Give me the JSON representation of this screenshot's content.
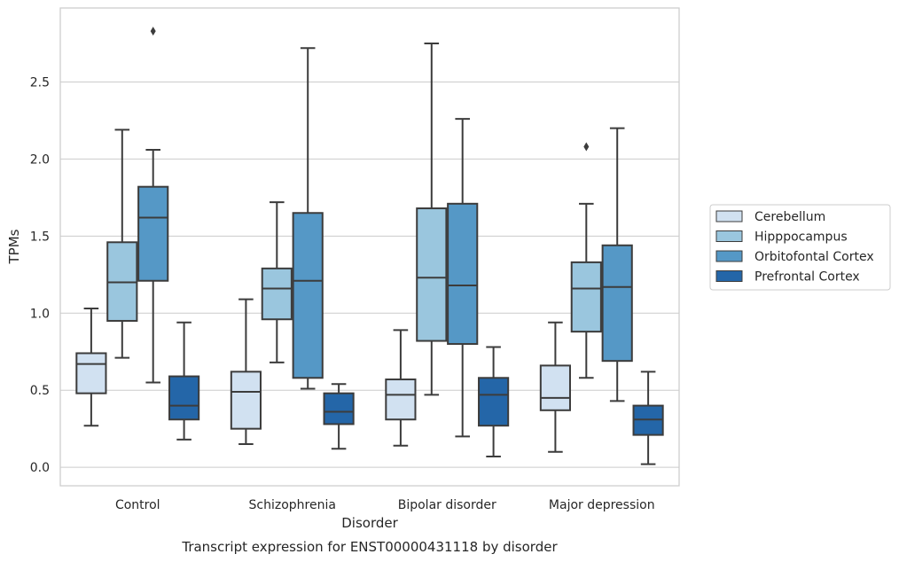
{
  "chart_data": {
    "type": "boxplot",
    "caption": "Transcript expression for ENST00000431118 by disorder",
    "xlabel": "Disorder",
    "ylabel": "TPMs",
    "ylim": [
      -0.12,
      2.98
    ],
    "yticks": [
      0.0,
      0.5,
      1.0,
      1.5,
      2.0,
      2.5
    ],
    "ytick_labels": [
      "0.0",
      "0.5",
      "1.0",
      "1.5",
      "2.0",
      "2.5"
    ],
    "grid": "horizontal",
    "legend_position": "right",
    "categories": [
      "Control",
      "Schizophrenia",
      "Bipolar disorder",
      "Major depression"
    ],
    "series": [
      {
        "name": "Cerebellum",
        "color": "#d1e1f1",
        "boxes": [
          {
            "whislo": 0.27,
            "q1": 0.48,
            "med": 0.67,
            "q3": 0.74,
            "whishi": 1.03,
            "fliers": []
          },
          {
            "whislo": 0.15,
            "q1": 0.25,
            "med": 0.49,
            "q3": 0.62,
            "whishi": 1.09,
            "fliers": []
          },
          {
            "whislo": 0.14,
            "q1": 0.31,
            "med": 0.47,
            "q3": 0.57,
            "whishi": 0.89,
            "fliers": []
          },
          {
            "whislo": 0.1,
            "q1": 0.37,
            "med": 0.45,
            "q3": 0.66,
            "whishi": 0.94,
            "fliers": []
          }
        ]
      },
      {
        "name": "Hipppocampus",
        "color": "#9ac6de",
        "boxes": [
          {
            "whislo": 0.71,
            "q1": 0.95,
            "med": 1.2,
            "q3": 1.46,
            "whishi": 2.19,
            "fliers": []
          },
          {
            "whislo": 0.68,
            "q1": 0.96,
            "med": 1.16,
            "q3": 1.29,
            "whishi": 1.72,
            "fliers": []
          },
          {
            "whislo": 0.47,
            "q1": 0.82,
            "med": 1.23,
            "q3": 1.68,
            "whishi": 2.75,
            "fliers": []
          },
          {
            "whislo": 0.58,
            "q1": 0.88,
            "med": 1.16,
            "q3": 1.33,
            "whishi": 1.71,
            "fliers": [
              2.08
            ]
          }
        ]
      },
      {
        "name": "Orbitofontal Cortex",
        "color": "#5598c6",
        "boxes": [
          {
            "whislo": 0.55,
            "q1": 1.21,
            "med": 1.62,
            "q3": 1.82,
            "whishi": 2.06,
            "fliers": [
              2.83
            ]
          },
          {
            "whislo": 0.51,
            "q1": 0.58,
            "med": 1.21,
            "q3": 1.65,
            "whishi": 2.72,
            "fliers": []
          },
          {
            "whislo": 0.2,
            "q1": 0.8,
            "med": 1.18,
            "q3": 1.71,
            "whishi": 2.26,
            "fliers": []
          },
          {
            "whislo": 0.43,
            "q1": 0.69,
            "med": 1.17,
            "q3": 1.44,
            "whishi": 2.2,
            "fliers": []
          }
        ]
      },
      {
        "name": "Prefrontal Cortex",
        "color": "#2466a8",
        "boxes": [
          {
            "whislo": 0.18,
            "q1": 0.31,
            "med": 0.4,
            "q3": 0.59,
            "whishi": 0.94,
            "fliers": []
          },
          {
            "whislo": 0.12,
            "q1": 0.28,
            "med": 0.36,
            "q3": 0.48,
            "whishi": 0.54,
            "fliers": []
          },
          {
            "whislo": 0.07,
            "q1": 0.27,
            "med": 0.47,
            "q3": 0.58,
            "whishi": 0.78,
            "fliers": []
          },
          {
            "whislo": 0.02,
            "q1": 0.21,
            "med": 0.31,
            "q3": 0.4,
            "whishi": 0.62,
            "fliers": []
          }
        ]
      }
    ]
  }
}
